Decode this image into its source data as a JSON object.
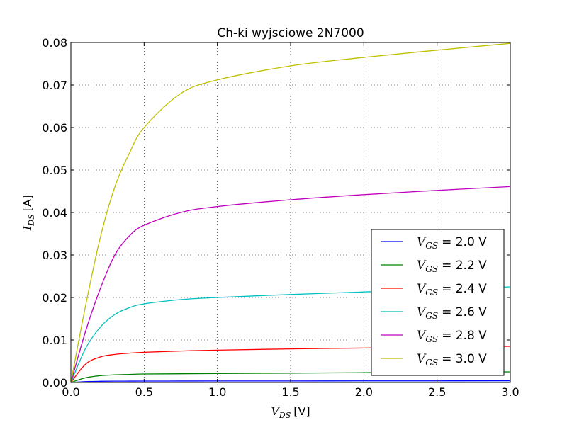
{
  "chart_data": {
    "type": "line",
    "title": "Ch-ki wyjsciowe 2N7000",
    "xlabel": {
      "sym": "V",
      "sub": "DS",
      "unit": "[V]"
    },
    "ylabel": {
      "sym": "I",
      "sub": "DS",
      "unit": "[A]"
    },
    "xlim": [
      0,
      3.0
    ],
    "ylim": [
      0,
      0.08
    ],
    "grid": true,
    "legend_position": "lower-right",
    "x_ticks": [
      "0.0",
      "0.5",
      "1.0",
      "1.5",
      "2.0",
      "2.5",
      "3.0"
    ],
    "y_ticks": [
      "0.00",
      "0.01",
      "0.02",
      "0.03",
      "0.04",
      "0.05",
      "0.06",
      "0.07",
      "0.08"
    ],
    "x": [
      0,
      0.1,
      0.2,
      0.3,
      0.4,
      0.5,
      0.75,
      1.0,
      1.5,
      2.0,
      2.5,
      3.0
    ],
    "series": [
      {
        "name_sym": "V",
        "name_sub": "GS",
        "name_val": "= 2.0 V",
        "color": "#0000ff",
        "values": [
          0,
          0.0002,
          0.00028,
          0.00031,
          0.00032,
          0.00033,
          0.00034,
          0.00035,
          0.00036,
          0.00037,
          0.00038,
          0.00039
        ]
      },
      {
        "name_sym": "V",
        "name_sub": "GS",
        "name_val": "= 2.2 V",
        "color": "#008000",
        "values": [
          0,
          0.0011,
          0.0016,
          0.0018,
          0.0019,
          0.002,
          0.00205,
          0.0021,
          0.0022,
          0.0023,
          0.0024,
          0.0025
        ]
      },
      {
        "name_sym": "V",
        "name_sub": "GS",
        "name_val": "= 2.4 V",
        "color": "#ff0000",
        "values": [
          0,
          0.0043,
          0.006,
          0.0066,
          0.0069,
          0.0071,
          0.0074,
          0.0076,
          0.0079,
          0.0081,
          0.0083,
          0.0085
        ]
      },
      {
        "name_sym": "V",
        "name_sub": "GS",
        "name_val": "= 2.6 V",
        "color": "#00bfbf",
        "values": [
          0,
          0.008,
          0.013,
          0.016,
          0.0176,
          0.0185,
          0.0195,
          0.02,
          0.0207,
          0.0213,
          0.0219,
          0.0225
        ]
      },
      {
        "name_sym": "V",
        "name_sub": "GS",
        "name_val": "= 2.8 V",
        "color": "#bf00bf",
        "values": [
          0,
          0.012,
          0.022,
          0.03,
          0.0345,
          0.037,
          0.04,
          0.0414,
          0.043,
          0.0442,
          0.0452,
          0.0461
        ]
      },
      {
        "name_sym": "V",
        "name_sub": "GS",
        "name_val": "= 3.0 V",
        "color": "#bfbf00",
        "values": [
          0,
          0.018,
          0.034,
          0.046,
          0.054,
          0.06,
          0.068,
          0.0712,
          0.0745,
          0.0765,
          0.0782,
          0.0798
        ]
      }
    ]
  }
}
